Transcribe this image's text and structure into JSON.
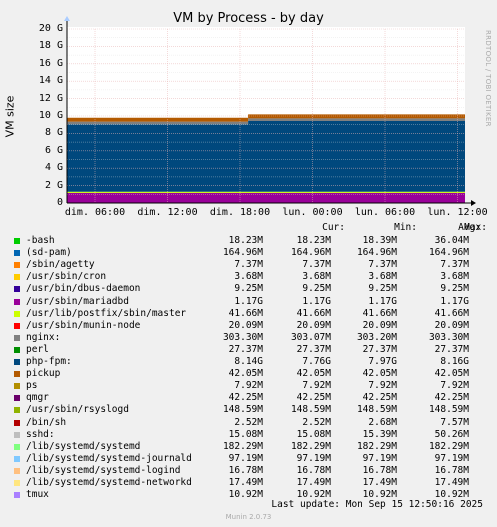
{
  "title": "VM by Process - by day",
  "ylabel": "VM size",
  "side_text": "RRDTOOL / TOBI OETIKER",
  "headers": {
    "cur": "Cur:",
    "min": "Min:",
    "avg": "Avg:",
    "max": "Max:"
  },
  "footer": "Last update: Mon Sep 15 12:50:16 2025",
  "munin": "Munin 2.0.73",
  "chart_data": {
    "type": "area",
    "title": "VM by Process - by day",
    "ylabel": "VM size",
    "y_ticks": [
      "0",
      "2 G",
      "4 G",
      "6 G",
      "8 G",
      "10 G",
      "12 G",
      "14 G",
      "16 G",
      "18 G",
      "20 G"
    ],
    "ylim": [
      0,
      20
    ],
    "x_ticks": [
      "dim. 06:00",
      "dim. 12:00",
      "dim. 18:00",
      "lun. 00:00",
      "lun. 06:00",
      "lun. 12:00"
    ],
    "grid": true,
    "legend": [
      {
        "name": "-bash",
        "color": "#00cc00",
        "cur": "18.23M",
        "min": "18.23M",
        "avg": "18.39M",
        "max": "36.04M"
      },
      {
        "name": "(sd-pam)",
        "color": "#0066b3",
        "cur": "164.96M",
        "min": "164.96M",
        "avg": "164.96M",
        "max": "164.96M"
      },
      {
        "name": "/sbin/agetty",
        "color": "#ff8000",
        "cur": "7.37M",
        "min": "7.37M",
        "avg": "7.37M",
        "max": "7.37M"
      },
      {
        "name": "/usr/sbin/cron",
        "color": "#ffcc00",
        "cur": "3.68M",
        "min": "3.68M",
        "avg": "3.68M",
        "max": "3.68M"
      },
      {
        "name": "/usr/bin/dbus-daemon",
        "color": "#330099",
        "cur": "9.25M",
        "min": "9.25M",
        "avg": "9.25M",
        "max": "9.25M"
      },
      {
        "name": "/usr/sbin/mariadbd",
        "color": "#990099",
        "cur": "1.17G",
        "min": "1.17G",
        "avg": "1.17G",
        "max": "1.17G"
      },
      {
        "name": "/usr/lib/postfix/sbin/master",
        "color": "#ccff00",
        "cur": "41.66M",
        "min": "41.66M",
        "avg": "41.66M",
        "max": "41.66M"
      },
      {
        "name": "/usr/sbin/munin-node",
        "color": "#ff0000",
        "cur": "20.09M",
        "min": "20.09M",
        "avg": "20.09M",
        "max": "20.09M"
      },
      {
        "name": "nginx:",
        "color": "#808080",
        "cur": "303.30M",
        "min": "303.07M",
        "avg": "303.20M",
        "max": "303.30M"
      },
      {
        "name": "perl",
        "color": "#008f00",
        "cur": "27.37M",
        "min": "27.37M",
        "avg": "27.37M",
        "max": "27.37M"
      },
      {
        "name": "php-fpm:",
        "color": "#00487d",
        "cur": "8.14G",
        "min": "7.76G",
        "avg": "7.97G",
        "max": "8.16G"
      },
      {
        "name": "pickup",
        "color": "#b35a00",
        "cur": "42.05M",
        "min": "42.05M",
        "avg": "42.05M",
        "max": "42.05M"
      },
      {
        "name": "ps",
        "color": "#b38f00",
        "cur": "7.92M",
        "min": "7.92M",
        "avg": "7.92M",
        "max": "7.92M"
      },
      {
        "name": "qmgr",
        "color": "#6b006b",
        "cur": "42.25M",
        "min": "42.25M",
        "avg": "42.25M",
        "max": "42.25M"
      },
      {
        "name": "/usr/sbin/rsyslogd",
        "color": "#8fb300",
        "cur": "148.59M",
        "min": "148.59M",
        "avg": "148.59M",
        "max": "148.59M"
      },
      {
        "name": "/bin/sh",
        "color": "#b30000",
        "cur": "2.52M",
        "min": "2.52M",
        "avg": "2.68M",
        "max": "7.57M"
      },
      {
        "name": "sshd:",
        "color": "#bebebe",
        "cur": "15.08M",
        "min": "15.08M",
        "avg": "15.39M",
        "max": "50.26M"
      },
      {
        "name": "/lib/systemd/systemd",
        "color": "#80ff80",
        "cur": "182.29M",
        "min": "182.29M",
        "avg": "182.29M",
        "max": "182.29M"
      },
      {
        "name": "/lib/systemd/systemd-journald",
        "color": "#80c9ff",
        "cur": "97.19M",
        "min": "97.19M",
        "avg": "97.19M",
        "max": "97.19M"
      },
      {
        "name": "/lib/systemd/systemd-logind",
        "color": "#ffc080",
        "cur": "16.78M",
        "min": "16.78M",
        "avg": "16.78M",
        "max": "16.78M"
      },
      {
        "name": "/lib/systemd/systemd-networkd",
        "color": "#ffe680",
        "cur": "17.49M",
        "min": "17.49M",
        "avg": "17.49M",
        "max": "17.49M"
      },
      {
        "name": "tmux",
        "color": "#aa80ff",
        "cur": "10.92M",
        "min": "10.92M",
        "avg": "10.92M",
        "max": "10.92M"
      }
    ],
    "stack_bands_G": [
      {
        "name": "/usr/sbin/mariadbd",
        "before": 1.17,
        "after": 1.17,
        "color": "#990099"
      },
      {
        "name": "misc-low",
        "before": 0.12,
        "after": 0.12,
        "color": "#ccff00"
      },
      {
        "name": "php-fpm:",
        "before": 7.76,
        "after": 8.14,
        "color": "#00487d"
      },
      {
        "name": "nginx:",
        "before": 0.3,
        "after": 0.3,
        "color": "#808080"
      },
      {
        "name": "misc-high",
        "before": 0.45,
        "after": 0.45,
        "color": "#b35a00"
      }
    ],
    "step_at_x": 0.455
  }
}
